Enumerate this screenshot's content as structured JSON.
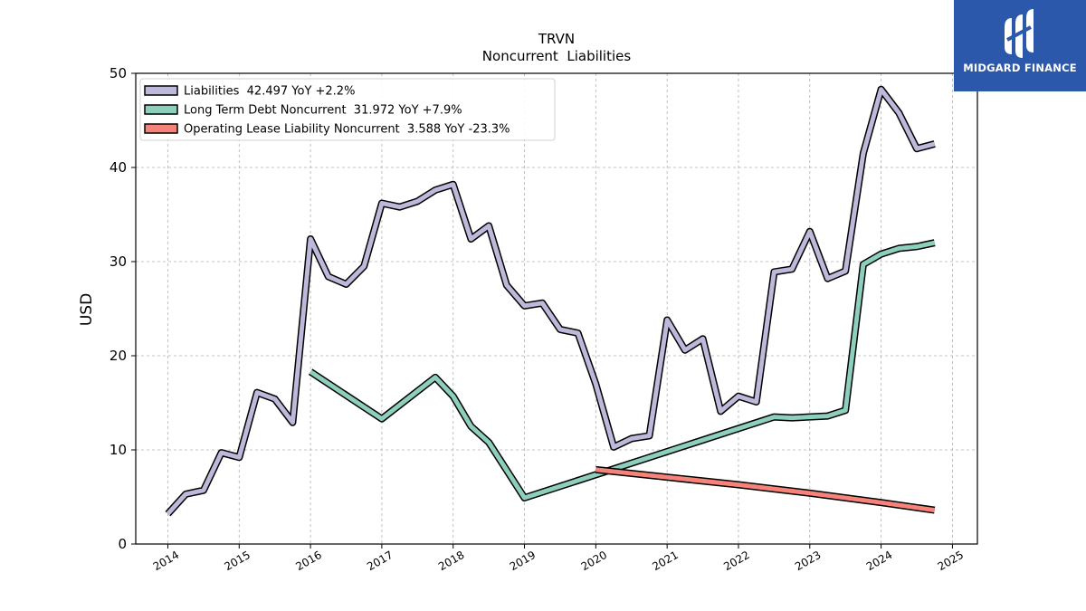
{
  "brand": {
    "name": "MIDGARD FINANCE",
    "bg_color": "#2b58aa"
  },
  "chart_data": {
    "type": "line",
    "title": "TRVN",
    "subtitle": "Noncurrent  Liabilities",
    "ylabel": "USD",
    "xlabel": "",
    "x_ticks": [
      "2014",
      "2015",
      "2016",
      "2017",
      "2018",
      "2019",
      "2020",
      "2021",
      "2022",
      "2023",
      "2024",
      "2025"
    ],
    "xlim": [
      2013.55,
      2025.35
    ],
    "ylim": [
      0,
      50
    ],
    "y_ticks": [
      0,
      10,
      20,
      30,
      40,
      50
    ],
    "grid": true,
    "legend_position": "top-left",
    "series": [
      {
        "name": "Liabilities",
        "legend": "Liabilities  42.497 YoY +2.2%",
        "color": "#bcb9da",
        "x": [
          "2014-01-01",
          "2014-04-01",
          "2014-07-01",
          "2014-10-01",
          "2015-01-01",
          "2015-04-01",
          "2015-07-01",
          "2015-10-01",
          "2016-01-01",
          "2016-04-01",
          "2016-07-01",
          "2016-10-01",
          "2017-01-01",
          "2017-04-01",
          "2017-07-01",
          "2017-10-01",
          "2018-01-01",
          "2018-04-01",
          "2018-07-01",
          "2018-10-01",
          "2019-01-01",
          "2019-04-01",
          "2019-07-01",
          "2019-10-01",
          "2020-01-01",
          "2020-04-01",
          "2020-07-01",
          "2020-10-01",
          "2021-01-01",
          "2021-04-01",
          "2021-07-01",
          "2021-10-01",
          "2022-01-01",
          "2022-04-01",
          "2022-07-01",
          "2022-10-01",
          "2023-01-01",
          "2023-04-01",
          "2023-07-01",
          "2023-10-01",
          "2024-01-01",
          "2024-04-01",
          "2024-07-01",
          "2024-10-01"
        ],
        "values": [
          3.2,
          5.3,
          5.7,
          9.7,
          9.2,
          16.1,
          15.4,
          12.9,
          32.4,
          28.4,
          27.6,
          29.5,
          36.2,
          35.8,
          36.4,
          37.6,
          38.2,
          32.4,
          33.8,
          27.5,
          25.3,
          25.6,
          22.8,
          22.4,
          17.0,
          10.3,
          11.2,
          11.5,
          23.8,
          20.6,
          21.8,
          14.1,
          15.7,
          15.1,
          28.9,
          29.2,
          33.2,
          28.2,
          29.0,
          41.5,
          48.3,
          45.8,
          42.0,
          42.5
        ]
      },
      {
        "name": "Long Term Debt Noncurrent",
        "legend": "Long Term Debt Noncurrent  31.972 YoY +7.9%",
        "color": "#8ccfbd",
        "x": [
          "2016-01-01",
          "2017-01-01",
          "2017-10-01",
          "2018-01-01",
          "2018-04-01",
          "2018-07-01",
          "2019-01-01",
          "2022-07-01",
          "2022-10-01",
          "2023-04-01",
          "2023-07-01",
          "2023-10-01",
          "2024-01-01",
          "2024-04-01",
          "2024-07-01",
          "2024-10-01"
        ],
        "values": [
          18.3,
          13.3,
          17.7,
          15.7,
          12.5,
          10.8,
          4.9,
          13.5,
          13.4,
          13.6,
          14.2,
          29.7,
          30.8,
          31.4,
          31.6,
          32.0
        ]
      },
      {
        "name": "Operating Lease Liability Noncurrent",
        "legend": "Operating Lease Liability Noncurrent  3.588 YoY -23.3%",
        "color": "#f6837a",
        "x": [
          "2020-01-01",
          "2021-01-01",
          "2022-01-01",
          "2023-01-01",
          "2024-01-01",
          "2024-10-01"
        ],
        "values": [
          7.9,
          7.1,
          6.3,
          5.4,
          4.4,
          3.6
        ]
      }
    ]
  }
}
